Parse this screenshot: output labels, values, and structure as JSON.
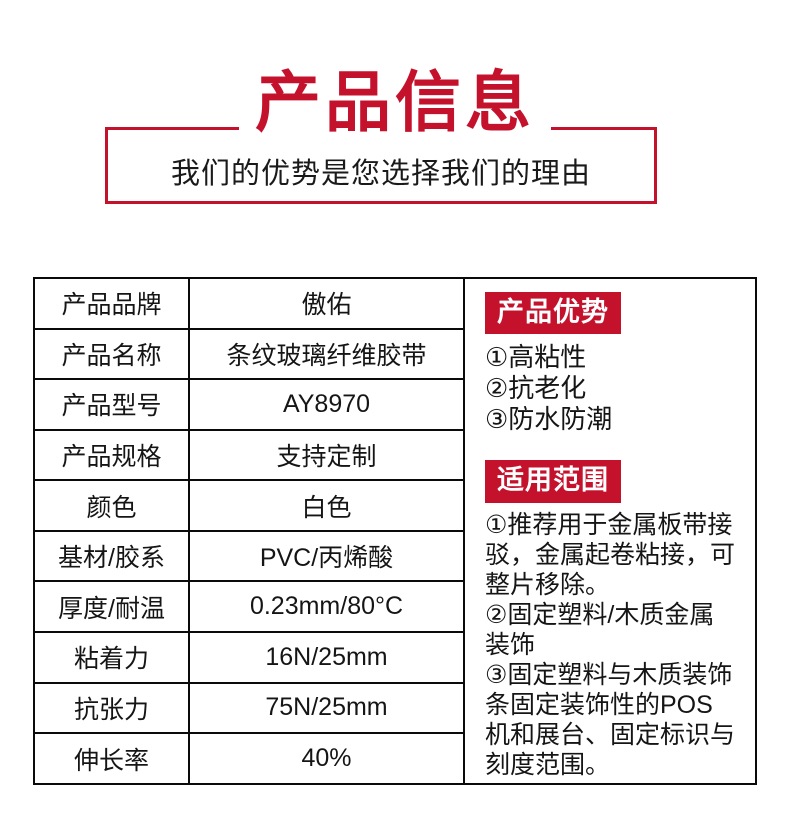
{
  "colors": {
    "accent_red": "#c4122d",
    "text": "#111111",
    "table_border": "#0a0a0a"
  },
  "header": {
    "title": "产品信息",
    "subtitle": "我们的优势是您选择我们的理由"
  },
  "spec_table": {
    "rows": [
      {
        "label": "产品品牌",
        "value": "傲佑"
      },
      {
        "label": "产品名称",
        "value": "条纹玻璃纤维胶带"
      },
      {
        "label": "产品型号",
        "value": "AY8970"
      },
      {
        "label": "产品规格",
        "value": "支持定制"
      },
      {
        "label": "颜色",
        "value": "白色"
      },
      {
        "label": "基材/胶系",
        "value": "PVC/丙烯酸"
      },
      {
        "label": "厚度/耐温",
        "value": "0.23mm/80°C"
      },
      {
        "label": "粘着力",
        "value": "16N/25mm"
      },
      {
        "label": "抗张力",
        "value": "75N/25mm"
      },
      {
        "label": "伸长率",
        "value": "40%"
      }
    ]
  },
  "side_panel": {
    "advantages": {
      "title": "产品优势",
      "items": [
        "①高粘性",
        "②抗老化",
        "③防水防潮"
      ]
    },
    "scope": {
      "title": "适用范围",
      "items": [
        "①推荐用于金属板带接驳，金属起卷粘接，可整片移除。",
        "②固定塑料/木质金属装饰",
        "③固定塑料与木质装饰条固定装饰性的POS机和展台、固定标识与刻度范围。"
      ]
    }
  }
}
